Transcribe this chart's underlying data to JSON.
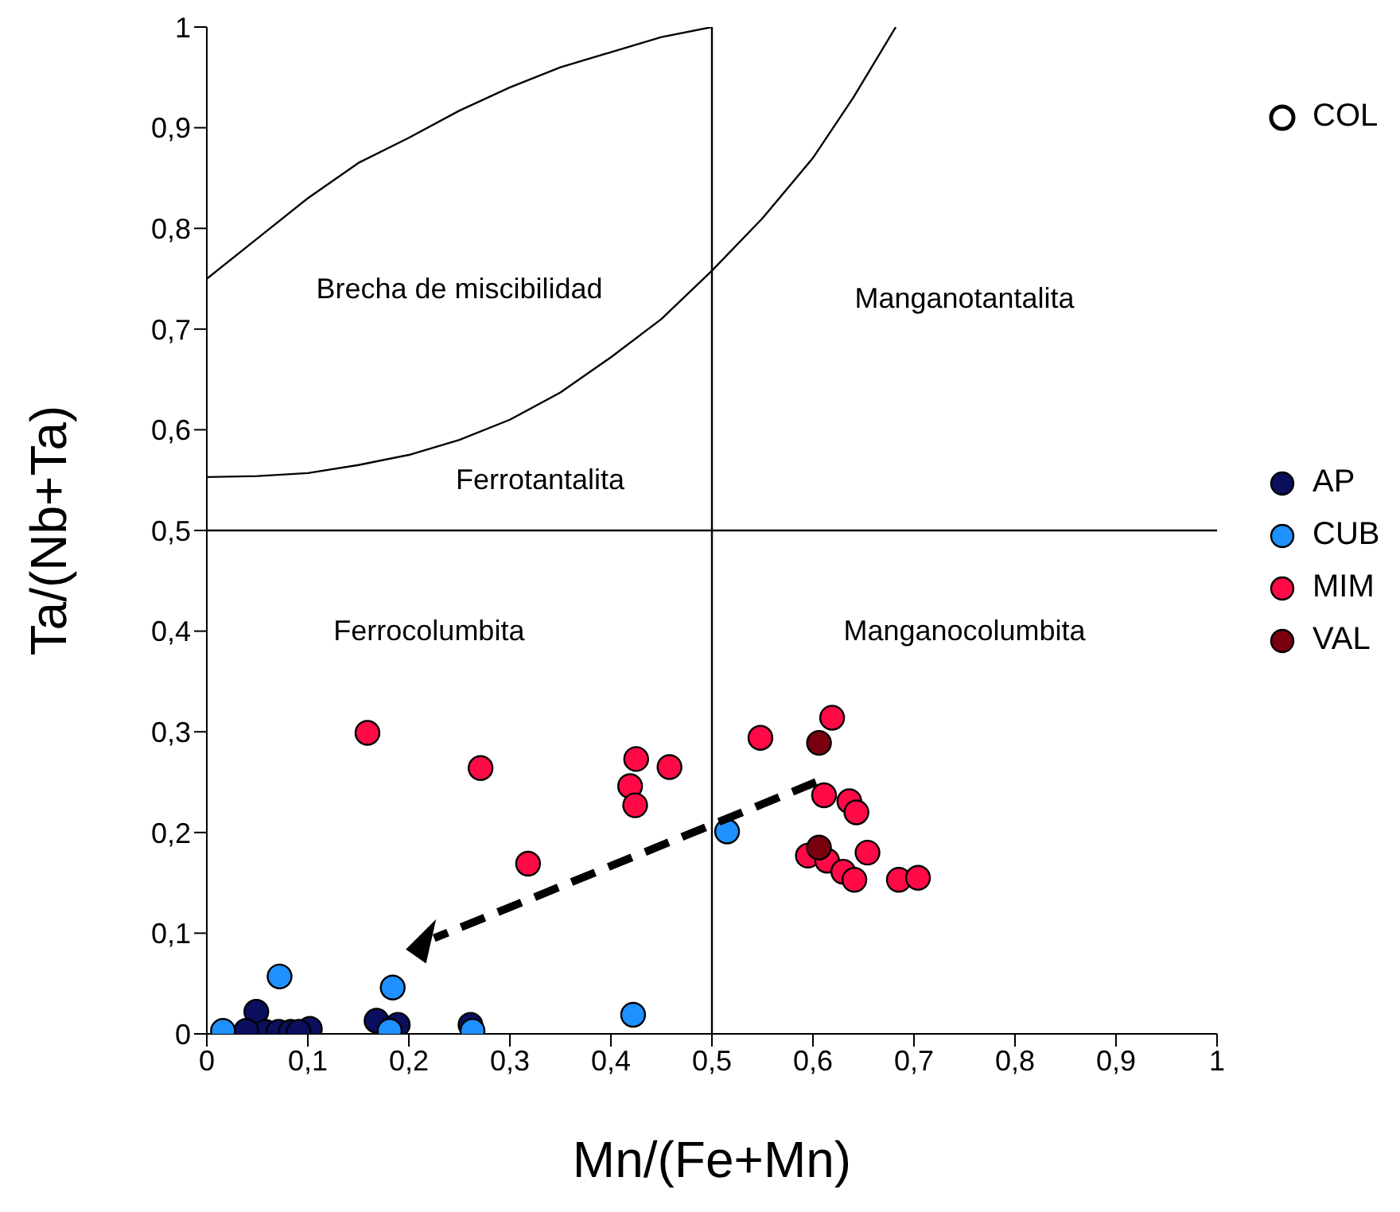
{
  "chart_data": {
    "type": "scatter",
    "xlabel": "Mn/(Fe+Mn)",
    "ylabel": "Ta/(Nb+Ta)",
    "xlim": [
      0,
      1
    ],
    "ylim": [
      0,
      1
    ],
    "xticks": [
      0,
      {
        "value": 0.1,
        "label": "0,1"
      },
      {
        "value": 0.2,
        "label": "0,2"
      },
      {
        "value": 0.3,
        "label": "0,3"
      },
      {
        "value": 0.4,
        "label": "0,4"
      },
      {
        "value": 0.5,
        "label": "0,5"
      },
      {
        "value": 0.6,
        "label": "0,6"
      },
      {
        "value": 0.7,
        "label": "0,7"
      },
      {
        "value": 0.8,
        "label": "0,8"
      },
      {
        "value": 0.9,
        "label": "0,9"
      },
      1
    ],
    "yticks": [
      0,
      {
        "value": 0.1,
        "label": "0,1"
      },
      {
        "value": 0.2,
        "label": "0,2"
      },
      {
        "value": 0.3,
        "label": "0,3"
      },
      {
        "value": 0.4,
        "label": "0,4"
      },
      {
        "value": 0.5,
        "label": "0,5"
      },
      {
        "value": 0.6,
        "label": "0,6"
      },
      {
        "value": 0.7,
        "label": "0,7"
      },
      {
        "value": 0.8,
        "label": "0,8"
      },
      {
        "value": 0.9,
        "label": "0,9"
      },
      1
    ],
    "legend": "right",
    "marker": "circle",
    "annotations": [
      "Brecha de miscibilidad",
      "Manganotantalita",
      "Ferrotantalita",
      "Ferrocolumbita",
      "Manganocolumbita"
    ],
    "series": [
      {
        "name": "COL",
        "color": "#ffffff"
      },
      {
        "type": "line",
        "color": "#000000",
        "marker": "none",
        "x": [
          0.5,
          0.5
        ],
        "values": [
          0,
          1
        ]
      },
      {
        "type": "line",
        "color": "#000000",
        "marker": "none",
        "x": [
          0,
          1
        ],
        "values": [
          0.5,
          0.5
        ]
      },
      {
        "type": "line",
        "color": "#000000",
        "marker": "none",
        "x": [
          0,
          0.05,
          0.1,
          0.15,
          0.2,
          0.25,
          0.3,
          0.35,
          0.4,
          0.45,
          0.5
        ],
        "values": [
          0.75,
          0.79,
          0.83,
          0.865,
          0.89,
          0.917,
          0.94,
          0.96,
          0.975,
          0.99,
          1
        ]
      },
      {
        "type": "line",
        "color": "#000000",
        "marker": "none",
        "x": [
          0,
          0.05,
          0.1,
          0.15,
          0.2,
          0.25,
          0.3,
          0.35,
          0.4,
          0.45,
          0.5,
          0.55,
          0.6,
          0.64,
          0.682
        ],
        "values": [
          0.553,
          0.554,
          0.557,
          0.565,
          0.575,
          0.59,
          0.61,
          0.637,
          0.672,
          0.71,
          0.758,
          0.81,
          0.87,
          0.93,
          1
        ]
      },
      {
        "name": "AP",
        "color": "#0b0f5e",
        "x": [
          0.049,
          0.058,
          0.071,
          0.083,
          0.102,
          0.168,
          0.189,
          0.261,
          0.039,
          0.091
        ],
        "values": [
          0.022,
          0.002,
          0.002,
          0.002,
          0.005,
          0.013,
          0.009,
          0.009,
          0.003,
          0.002
        ]
      },
      {
        "name": "CUB",
        "color": "#1e90ff",
        "x": [
          0.515,
          0.422,
          0.072,
          0.184,
          0.016,
          0.181,
          0.263
        ],
        "values": [
          0.201,
          0.019,
          0.057,
          0.046,
          0.003,
          0.003,
          0.003
        ]
      },
      {
        "name": "MIM",
        "color": "#ff0a47",
        "x": [
          0.159,
          0.271,
          0.318,
          0.419,
          0.425,
          0.424,
          0.458,
          0.548,
          0.619,
          0.611,
          0.636,
          0.643,
          0.654,
          0.595,
          0.614,
          0.63,
          0.641,
          0.685,
          0.704
        ],
        "values": [
          0.299,
          0.264,
          0.169,
          0.246,
          0.273,
          0.227,
          0.265,
          0.294,
          0.314,
          0.237,
          0.231,
          0.22,
          0.18,
          0.177,
          0.172,
          0.161,
          0.153,
          0.153,
          0.155
        ]
      },
      {
        "name": "VAL",
        "color": "#7a0010",
        "x": [
          0.606,
          0.606
        ],
        "values": [
          0.289,
          0.185
        ]
      }
    ]
  }
}
